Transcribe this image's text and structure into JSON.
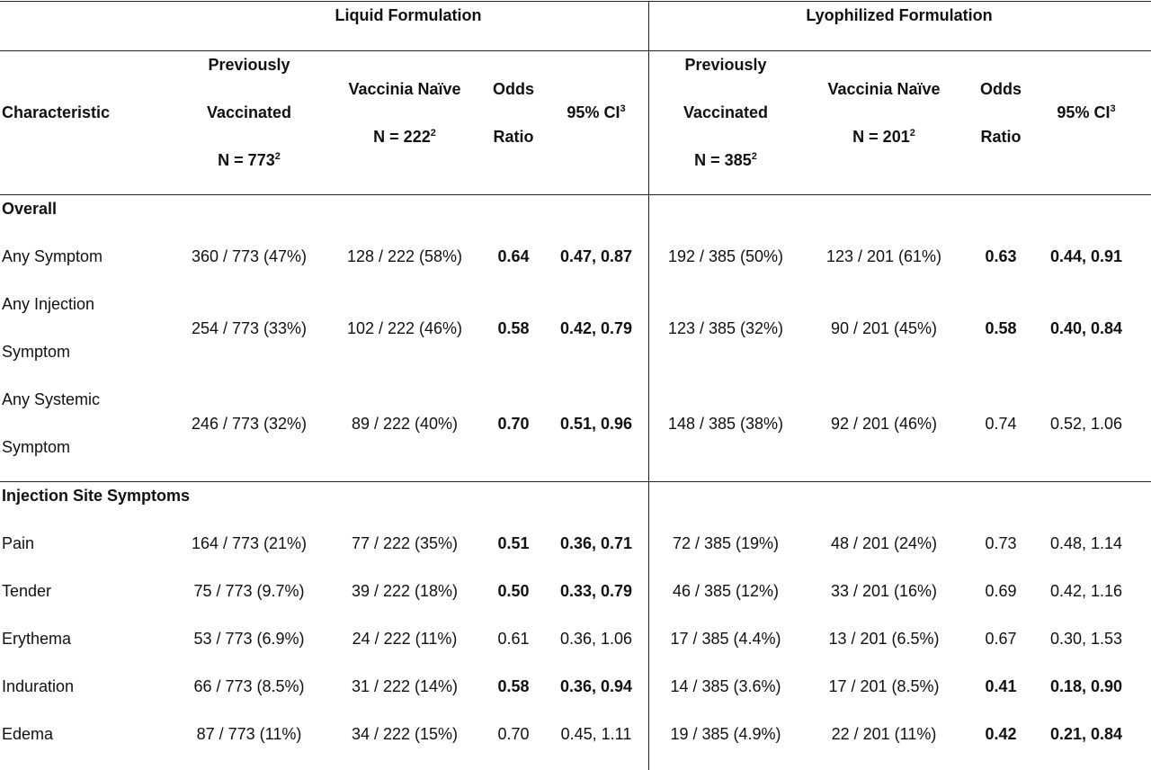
{
  "groups": {
    "liquid": "Liquid Formulation",
    "lyophilized": "Lyophilized Formulation"
  },
  "columns": {
    "characteristic": "Characteristic",
    "prev_line1": "Previously",
    "prev_line2": "Vaccinated",
    "naive": "Vaccinia Naïve",
    "or_line1": "Odds",
    "or_line2": "Ratio",
    "ci": "95% CI",
    "ci_sup": "3",
    "n_sup": "2",
    "liquid_prev_n": "N = 773",
    "liquid_naive_n": "N = 222",
    "lyo_prev_n": "N = 385",
    "lyo_naive_n": "N = 201"
  },
  "sections": [
    {
      "title": "Overall",
      "rows": [
        {
          "label": [
            "Any Symptom"
          ],
          "liq_prev": "360 / 773 (47%)",
          "liq_naive": "128 / 222 (58%)",
          "liq_or": "0.64",
          "liq_ci": "0.47, 0.87",
          "liq_bold": true,
          "lyo_prev": "192 / 385 (50%)",
          "lyo_naive": "123 / 201 (61%)",
          "lyo_or": "0.63",
          "lyo_ci": "0.44, 0.91",
          "lyo_bold": true
        },
        {
          "label": [
            "Any Injection",
            "Symptom"
          ],
          "liq_prev": "254 / 773 (33%)",
          "liq_naive": "102 / 222 (46%)",
          "liq_or": "0.58",
          "liq_ci": "0.42, 0.79",
          "liq_bold": true,
          "lyo_prev": "123 / 385 (32%)",
          "lyo_naive": "90 / 201 (45%)",
          "lyo_or": "0.58",
          "lyo_ci": "0.40, 0.84",
          "lyo_bold": true
        },
        {
          "label": [
            "Any Systemic",
            "Symptom"
          ],
          "liq_prev": "246 / 773 (32%)",
          "liq_naive": "89 / 222 (40%)",
          "liq_or": "0.70",
          "liq_ci": "0.51, 0.96",
          "liq_bold": true,
          "lyo_prev": "148 / 385 (38%)",
          "lyo_naive": "92 / 201 (46%)",
          "lyo_or": "0.74",
          "lyo_ci": "0.52, 1.06",
          "lyo_bold": false
        }
      ]
    },
    {
      "title": "Injection Site Symptoms",
      "rows": [
        {
          "label": [
            "Pain"
          ],
          "liq_prev": "164 / 773 (21%)",
          "liq_naive": "77 / 222 (35%)",
          "liq_or": "0.51",
          "liq_ci": "0.36, 0.71",
          "liq_bold": true,
          "lyo_prev": "72 / 385 (19%)",
          "lyo_naive": "48 / 201 (24%)",
          "lyo_or": "0.73",
          "lyo_ci": "0.48, 1.14",
          "lyo_bold": false
        },
        {
          "label": [
            "Tender"
          ],
          "liq_prev": "75 / 773 (9.7%)",
          "liq_naive": "39 / 222 (18%)",
          "liq_or": "0.50",
          "liq_ci": "0.33, 0.79",
          "liq_bold": true,
          "lyo_prev": "46 / 385 (12%)",
          "lyo_naive": "33 / 201 (16%)",
          "lyo_or": "0.69",
          "lyo_ci": "0.42, 1.16",
          "lyo_bold": false
        },
        {
          "label": [
            "Erythema"
          ],
          "liq_prev": "53 / 773 (6.9%)",
          "liq_naive": "24 / 222 (11%)",
          "liq_or": "0.61",
          "liq_ci": "0.36, 1.06",
          "liq_bold": false,
          "lyo_prev": "17 / 385 (4.4%)",
          "lyo_naive": "13 / 201 (6.5%)",
          "lyo_or": "0.67",
          "lyo_ci": "0.30, 1.53",
          "lyo_bold": false
        },
        {
          "label": [
            "Induration"
          ],
          "liq_prev": "66 / 773 (8.5%)",
          "liq_naive": "31 / 222 (14%)",
          "liq_or": "0.58",
          "liq_ci": "0.36, 0.94",
          "liq_bold": true,
          "lyo_prev": "14 / 385 (3.6%)",
          "lyo_naive": "17 / 201 (8.5%)",
          "lyo_or": "0.41",
          "lyo_ci": "0.18, 0.90",
          "lyo_bold": true
        },
        {
          "label": [
            "Edema"
          ],
          "liq_prev": "87 / 773 (11%)",
          "liq_naive": "34 / 222 (15%)",
          "liq_or": "0.70",
          "liq_ci": "0.45, 1.11",
          "liq_bold": false,
          "lyo_prev": "19 / 385 (4.9%)",
          "lyo_naive": "22 / 201 (11%)",
          "lyo_or": "0.42",
          "lyo_ci": "0.21, 0.84",
          "lyo_bold": true
        }
      ]
    }
  ]
}
